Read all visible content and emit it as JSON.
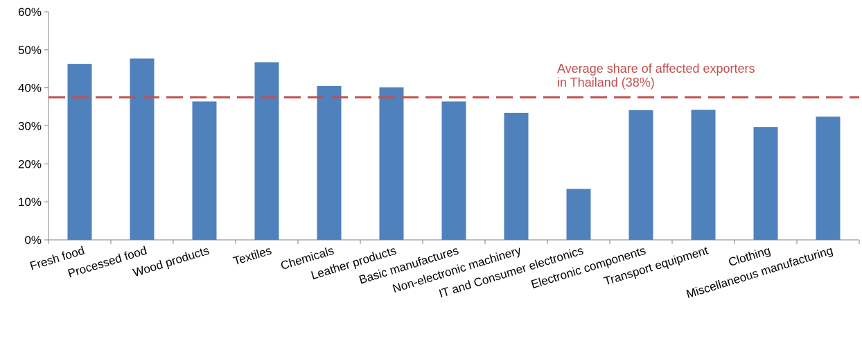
{
  "chart_data": {
    "type": "bar",
    "categories": [
      "Fresh food",
      "Processed food",
      "Wood products",
      "Textiles",
      "Chemicals",
      "Leather products",
      "Basic manufactures",
      "Non-electronic machinery",
      "IT and Consumer electronics",
      "Electronic components",
      "Transport equipment",
      "Clothing",
      "Miscellaneous manufacturing"
    ],
    "values": [
      46.3,
      47.7,
      36.4,
      46.7,
      40.5,
      40.1,
      36.4,
      33.4,
      13.4,
      34.1,
      34.2,
      29.7,
      32.4
    ],
    "yunit": "%",
    "ylim": [
      0,
      60
    ],
    "yticks": [
      0,
      10,
      20,
      30,
      40,
      50,
      60
    ],
    "ytick_labels": [
      "0%",
      "10%",
      "20%",
      "30%",
      "40%",
      "50%",
      "60%"
    ],
    "grid": false,
    "legend": "none",
    "reference_line": {
      "value": 37.5,
      "style": "dashed",
      "label_lines": [
        "Average share of affected exporters",
        "in Thailand (38%)"
      ]
    },
    "colors": {
      "bar": "#4f81bd",
      "reference_line": "#c0504d",
      "axis": "#808080"
    }
  }
}
